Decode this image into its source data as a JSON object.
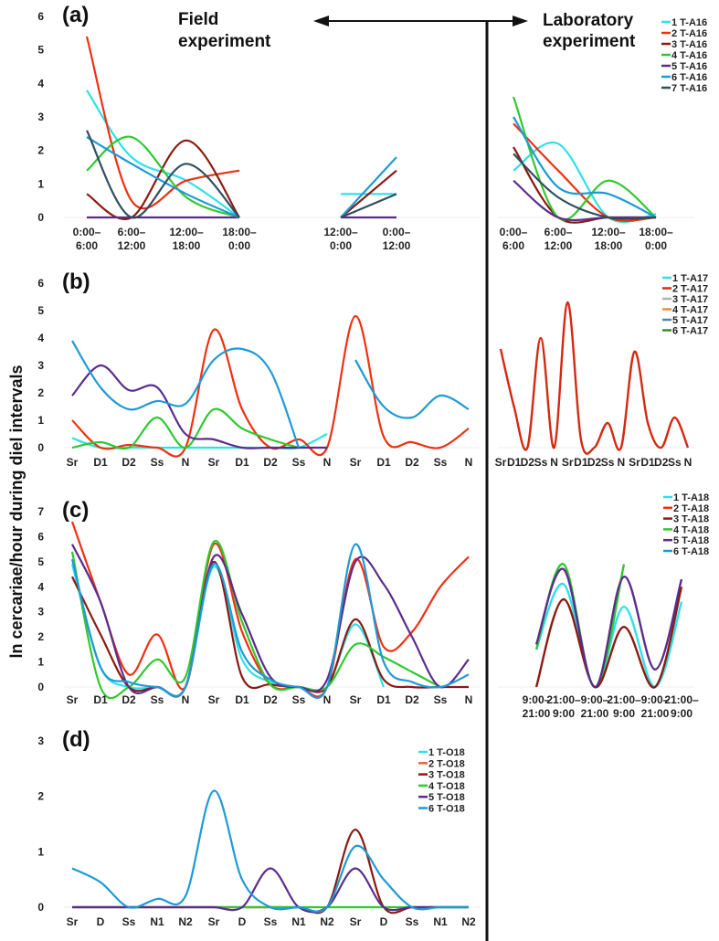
{
  "figure": {
    "header_field": [
      "Field",
      "experiment"
    ],
    "header_lab": [
      "Laboratory",
      "experiment"
    ],
    "ylabel": "ln cercariae/hour during diel intervals"
  },
  "chart_data": [
    {
      "id": "a",
      "type": "line",
      "panel_label": "(a)",
      "ylim": [
        0,
        6
      ],
      "yticks": [
        "0",
        "1",
        "2",
        "3",
        "4",
        "5",
        "6"
      ],
      "legend": [
        "1 T-A16",
        "2 T-A16",
        "3 T-A16",
        "4 T-A16",
        "5 T-A16",
        "6 T-A16",
        "7 T-A16"
      ],
      "colors": [
        "#2ee0e8",
        "#f03010",
        "#8b1a10",
        "#30c830",
        "#5a2d8c",
        "#1e9ad6",
        "#2f4f60"
      ],
      "field_blocks": [
        {
          "x_labels": [
            [
              "0:00–",
              "6:00"
            ],
            [
              "6:00–",
              "12:00"
            ],
            [
              "12:00–",
              "18:00"
            ],
            [
              "18:00–",
              "0:00"
            ]
          ],
          "series": [
            {
              "name": "1 T-A16",
              "values": [
                3.8,
                1.8,
                1.1,
                0.0
              ]
            },
            {
              "name": "2 T-A16",
              "values": [
                5.4,
                0.5,
                1.1,
                1.4
              ]
            },
            {
              "name": "3 T-A16",
              "values": [
                0.7,
                0.0,
                2.3,
                0.0
              ]
            },
            {
              "name": "4 T-A16",
              "values": [
                1.4,
                2.4,
                0.6,
                0.0
              ]
            },
            {
              "name": "5 T-A16",
              "values": [
                0.0,
                0.0,
                0.0,
                0.0
              ]
            },
            {
              "name": "6 T-A16",
              "values": [
                2.4,
                1.6,
                0.7,
                0.0
              ]
            },
            {
              "name": "7 T-A16",
              "values": [
                2.6,
                0.0,
                1.6,
                0.0
              ]
            }
          ]
        },
        {
          "x_labels": [
            [
              "12:00–",
              "0:00"
            ],
            [
              "0:00–",
              "12:00"
            ]
          ],
          "series": [
            {
              "name": "1 T-A16",
              "values": [
                0.7,
                0.7
              ]
            },
            {
              "name": "3 T-A16",
              "values": [
                0.0,
                1.4
              ]
            },
            {
              "name": "5 T-A16",
              "values": [
                0.0,
                0.0
              ]
            },
            {
              "name": "6 T-A16",
              "values": [
                0.0,
                1.8
              ]
            },
            {
              "name": "7 T-A16",
              "values": [
                0.0,
                0.7
              ]
            }
          ]
        }
      ],
      "lab": {
        "x_labels": [
          [
            "0:00–",
            "6:00"
          ],
          [
            "6:00–",
            "12:00"
          ],
          [
            "12:00–",
            "18:00"
          ],
          [
            "18:00–",
            "0:00"
          ]
        ],
        "series": [
          {
            "name": "1 T-A16",
            "values": [
              1.4,
              2.2,
              0.0,
              0.1
            ]
          },
          {
            "name": "2 T-A16",
            "values": [
              2.8,
              1.4,
              0.0,
              0.0
            ]
          },
          {
            "name": "3 T-A16",
            "values": [
              2.1,
              0.0,
              0.0,
              0.0
            ]
          },
          {
            "name": "4 T-A16",
            "values": [
              3.6,
              0.0,
              1.1,
              0.0
            ]
          },
          {
            "name": "5 T-A16",
            "values": [
              1.1,
              0.0,
              0.0,
              0.0
            ]
          },
          {
            "name": "6 T-A16",
            "values": [
              3.0,
              0.9,
              0.7,
              0.0
            ]
          },
          {
            "name": "7 T-A16",
            "values": [
              1.9,
              0.6,
              0.0,
              0.0
            ]
          }
        ]
      }
    },
    {
      "id": "b",
      "type": "line",
      "panel_label": "(b)",
      "ylim": [
        0,
        6
      ],
      "yticks": [
        "0",
        "1",
        "2",
        "3",
        "4",
        "5",
        "6"
      ],
      "legend": [
        "1 T-A17",
        "2 T-A17",
        "3 T-A17",
        "4 T-A17",
        "5 T-A17",
        "6 T-A17"
      ],
      "colors": [
        "#2ee0e8",
        "#d42a10",
        "#b0b0b0",
        "#f08a30",
        "#4a8aa8",
        "#3a8a30"
      ],
      "field": {
        "x_labels": [
          "Sr",
          "D1",
          "D2",
          "Ss",
          "N",
          "Sr",
          "D1",
          "D2",
          "Ss",
          "N",
          "Sr",
          "D1",
          "D2",
          "Ss",
          "N"
        ],
        "series": [
          {
            "name": "cyan",
            "color": "#2ee0e8",
            "values": [
              0.35,
              0.0,
              0.0,
              0.0,
              0.0,
              0.0,
              0.0,
              0.0,
              0.0,
              0.5,
              null,
              null,
              null,
              null,
              null
            ]
          },
          {
            "name": "red",
            "color": "#f03010",
            "values": [
              1.0,
              0.0,
              0.1,
              0.0,
              0.0,
              4.3,
              1.4,
              0.0,
              0.3,
              0.0,
              4.8,
              0.4,
              0.2,
              0.0,
              0.7
            ]
          },
          {
            "name": "green",
            "color": "#30c830",
            "values": [
              0.0,
              0.2,
              0.0,
              1.1,
              0.0,
              1.4,
              0.7,
              0.3,
              0.0,
              null,
              null,
              null,
              null,
              null,
              null
            ]
          },
          {
            "name": "purple",
            "color": "#5a2d8c",
            "values": [
              1.9,
              3.0,
              2.1,
              2.2,
              0.5,
              0.3,
              0.0,
              0.0,
              0.0,
              0.0,
              null,
              null,
              null,
              null,
              null
            ]
          },
          {
            "name": "blue",
            "color": "#1e9ad6",
            "values": [
              3.9,
              2.2,
              1.4,
              1.7,
              1.6,
              3.2,
              3.6,
              2.8,
              0.0,
              null,
              3.2,
              1.5,
              1.1,
              1.9,
              1.4
            ]
          }
        ]
      },
      "lab": {
        "x_labels": [
          "Sr",
          "D1",
          "D2",
          "Ss",
          "N",
          "Sr",
          "D1",
          "D2",
          "Ss",
          "N",
          "Sr",
          "D1",
          "D2",
          "Ss",
          "N"
        ],
        "series": [
          {
            "name": "2 T-A17",
            "color": "#d42a10",
            "values": [
              3.6,
              1.5,
              0.0,
              4.0,
              0.0,
              5.3,
              0.3,
              0.0,
              0.9,
              0.0,
              3.5,
              0.9,
              0.0,
              1.1,
              0.0
            ]
          }
        ]
      }
    },
    {
      "id": "c",
      "type": "line",
      "panel_label": "(c)",
      "ylim": [
        0,
        7
      ],
      "yticks": [
        "0",
        "1",
        "2",
        "3",
        "4",
        "5",
        "6",
        "7"
      ],
      "legend": [
        "1 T-A18",
        "2 T-A18",
        "3 T-A18",
        "4 T-A18",
        "5 T-A18",
        "6 T-A18"
      ],
      "colors": [
        "#2ee0e8",
        "#f03010",
        "#8b1a10",
        "#30c830",
        "#5a2d8c",
        "#1e9ad6"
      ],
      "field": {
        "x_labels": [
          "Sr",
          "D1",
          "D2",
          "Ss",
          "N",
          "Sr",
          "D1",
          "D2",
          "Ss",
          "N",
          "Sr",
          "D1",
          "D2",
          "Ss",
          "N"
        ],
        "series": [
          {
            "name": "1 T-A18",
            "values": [
              4.9,
              0.8,
              0.0,
              0.0,
              0.0,
              4.8,
              1.1,
              0.2,
              0.0,
              0.0,
              2.5,
              0.0,
              null,
              null,
              null
            ]
          },
          {
            "name": "2 T-A18",
            "values": [
              6.6,
              3.4,
              0.5,
              2.1,
              0.0,
              5.7,
              2.2,
              0.1,
              0.0,
              0.0,
              5.1,
              1.6,
              2.2,
              4.0,
              5.2
            ]
          },
          {
            "name": "3 T-A18",
            "values": [
              4.4,
              2.1,
              0.0,
              0.0,
              0.0,
              5.0,
              0.4,
              0.1,
              0.0,
              0.0,
              2.7,
              0.3,
              0.0,
              0.0,
              0.0
            ]
          },
          {
            "name": "4 T-A18",
            "values": [
              5.4,
              0.0,
              0.0,
              1.1,
              0.4,
              5.8,
              2.6,
              0.1,
              0.0,
              0.0,
              1.7,
              1.2,
              0.6,
              0.0,
              null
            ]
          },
          {
            "name": "5 T-A18",
            "values": [
              5.7,
              3.4,
              0.0,
              0.0,
              0.0,
              5.2,
              2.9,
              0.4,
              0.0,
              0.3,
              5.0,
              4.1,
              2.0,
              0.0,
              1.1
            ]
          },
          {
            "name": "6 T-A18",
            "values": [
              5.1,
              0.8,
              0.2,
              0.0,
              0.0,
              4.9,
              1.4,
              0.3,
              0.0,
              0.0,
              5.7,
              1.0,
              0.2,
              0.0,
              0.5
            ]
          }
        ]
      },
      "lab": {
        "x_labels": [
          [
            "9:00–",
            "21:00"
          ],
          [
            "21:00–",
            "9:00"
          ],
          [
            "9:00–",
            "21:00"
          ],
          [
            "21:00–",
            "9:00"
          ],
          [
            "9:00–",
            "21:00"
          ],
          [
            "21:00–",
            "9:00"
          ]
        ],
        "series": [
          {
            "name": "1 T-A18",
            "values": [
              1.5,
              4.1,
              0.0,
              3.2,
              0.0,
              3.4
            ]
          },
          {
            "name": "3 T-A18",
            "values": [
              0.0,
              3.5,
              0.0,
              2.4,
              0.0,
              4.0
            ]
          },
          {
            "name": "4 T-A18",
            "values": [
              1.5,
              4.9,
              0.0,
              4.9,
              null,
              null
            ]
          },
          {
            "name": "5 T-A18",
            "values": [
              1.7,
              4.7,
              0.0,
              4.4,
              0.7,
              4.3
            ]
          }
        ]
      }
    },
    {
      "id": "d",
      "type": "line",
      "panel_label": "(d)",
      "ylim": [
        0,
        3
      ],
      "yticks": [
        "0",
        "1",
        "2",
        "3"
      ],
      "legend": [
        "1 T-O18",
        "2 T-O18",
        "3 T-O18",
        "4 T-O18",
        "5 T-O18",
        "6 T-O18"
      ],
      "colors": [
        "#2ee0e8",
        "#f06040",
        "#8b1a10",
        "#30c830",
        "#5a2d8c",
        "#1e9ad6"
      ],
      "field": {
        "x_labels": [
          "Sr",
          "D",
          "Ss",
          "N1",
          "N2",
          "Sr",
          "D",
          "Ss",
          "N1",
          "N2",
          "Sr",
          "D",
          "Ss",
          "N1",
          "N2"
        ],
        "series": [
          {
            "name": "3 T-O18",
            "values": [
              0,
              0,
              0,
              0,
              0,
              0,
              0,
              0,
              0,
              0,
              1.4,
              0.0,
              0,
              0,
              0
            ]
          },
          {
            "name": "4 T-O18",
            "values": [
              0,
              0,
              0,
              0,
              0,
              0,
              0,
              0,
              0,
              0,
              0,
              0,
              0,
              0,
              0
            ]
          },
          {
            "name": "5 T-O18",
            "values": [
              0,
              0,
              0,
              0,
              0,
              0,
              0,
              0.7,
              0,
              0,
              0.7,
              0,
              0,
              0,
              0
            ]
          },
          {
            "name": "6 T-O18",
            "values": [
              0.7,
              0.45,
              0.0,
              0.15,
              0.2,
              2.1,
              0.5,
              0.0,
              0,
              0,
              1.1,
              0.5,
              0.0,
              0,
              0
            ]
          }
        ]
      }
    }
  ]
}
